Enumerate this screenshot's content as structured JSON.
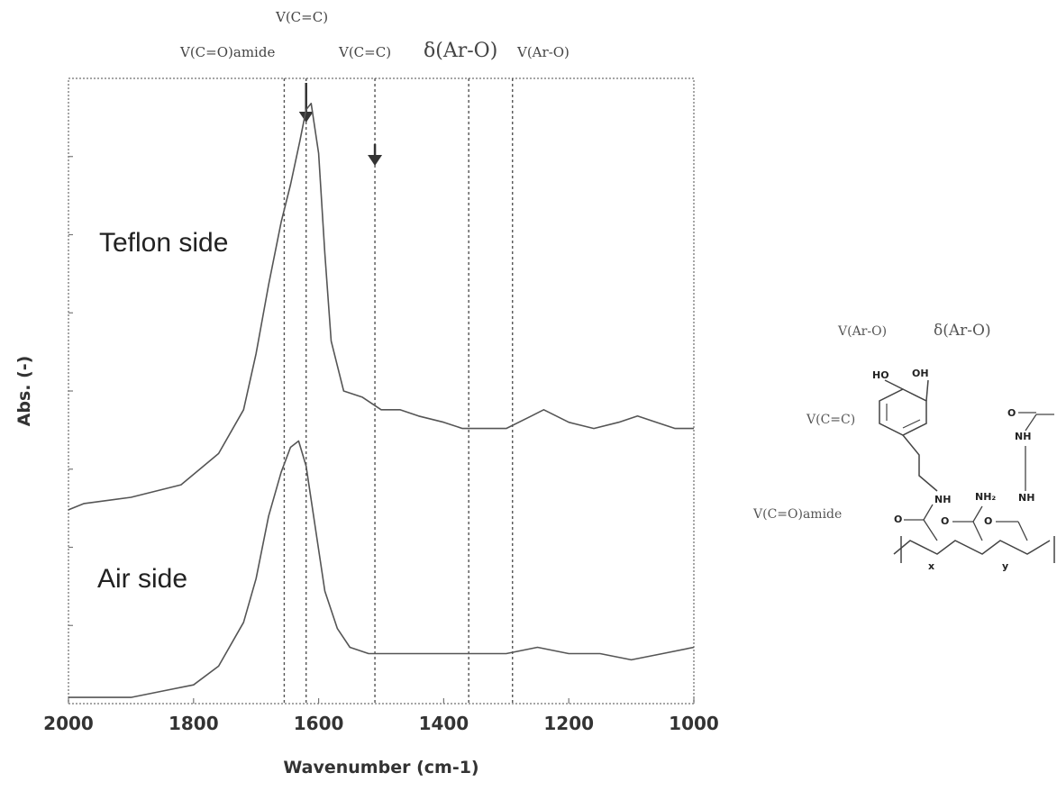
{
  "chart_data": {
    "type": "line",
    "xlabel": "Wavenumber (cm-1)",
    "ylabel": "Abs. (-)",
    "xlim": [
      2000,
      1000
    ],
    "x_reversed": true,
    "x_ticks": [
      "2000",
      "1800",
      "1600",
      "1400",
      "1200",
      "1000"
    ],
    "y_ticks_labeled": false,
    "series": [
      {
        "name": "Teflon side",
        "x": [
          2000,
          1975,
          1900,
          1820,
          1760,
          1720,
          1700,
          1680,
          1660,
          1645,
          1630,
          1620,
          1612,
          1600,
          1590,
          1580,
          1560,
          1530,
          1500,
          1470,
          1440,
          1400,
          1370,
          1340,
          1300,
          1260,
          1240,
          1200,
          1160,
          1120,
          1090,
          1060,
          1030,
          1000
        ],
        "y": [
          0.31,
          0.32,
          0.33,
          0.35,
          0.4,
          0.47,
          0.56,
          0.67,
          0.77,
          0.83,
          0.9,
          0.95,
          0.96,
          0.88,
          0.72,
          0.58,
          0.5,
          0.49,
          0.47,
          0.47,
          0.46,
          0.45,
          0.44,
          0.44,
          0.44,
          0.46,
          0.47,
          0.45,
          0.44,
          0.45,
          0.46,
          0.45,
          0.44,
          0.44
        ]
      },
      {
        "name": "Air side",
        "x": [
          2000,
          1950,
          1900,
          1850,
          1800,
          1760,
          1720,
          1700,
          1680,
          1660,
          1645,
          1632,
          1620,
          1605,
          1590,
          1570,
          1550,
          1520,
          1480,
          1440,
          1400,
          1350,
          1300,
          1250,
          1200,
          1150,
          1100,
          1050,
          1000
        ],
        "y": [
          0.01,
          0.01,
          0.01,
          0.02,
          0.03,
          0.06,
          0.13,
          0.2,
          0.3,
          0.37,
          0.41,
          0.42,
          0.38,
          0.28,
          0.18,
          0.12,
          0.09,
          0.08,
          0.08,
          0.08,
          0.08,
          0.08,
          0.08,
          0.09,
          0.08,
          0.08,
          0.07,
          0.08,
          0.09
        ]
      }
    ],
    "reference_lines": [
      {
        "x": 1655,
        "label": "V(C=O)amide"
      },
      {
        "x": 1620,
        "label": "V(C=C)"
      },
      {
        "x": 1510,
        "label": "V(C=C)"
      },
      {
        "x": 1360,
        "label": "δ(Ar-O)"
      },
      {
        "x": 1290,
        "label": "V(Ar-O)"
      }
    ],
    "arrows_at_x": [
      1620,
      1510
    ],
    "annotations": [
      "Teflon side",
      "Air side"
    ],
    "grid": false
  },
  "structure": {
    "labels": {
      "ar_o": "V(Ar-O)",
      "delta_ar_o": "δ(Ar-O)",
      "c_c": "V(C=C)",
      "c_o_amide": "V(C=O)amide"
    },
    "atoms": {
      "ho": "HO",
      "oh": "OH",
      "nh": "NH",
      "nh2": "NH₂",
      "o": "O",
      "x": "x",
      "y": "y"
    }
  }
}
